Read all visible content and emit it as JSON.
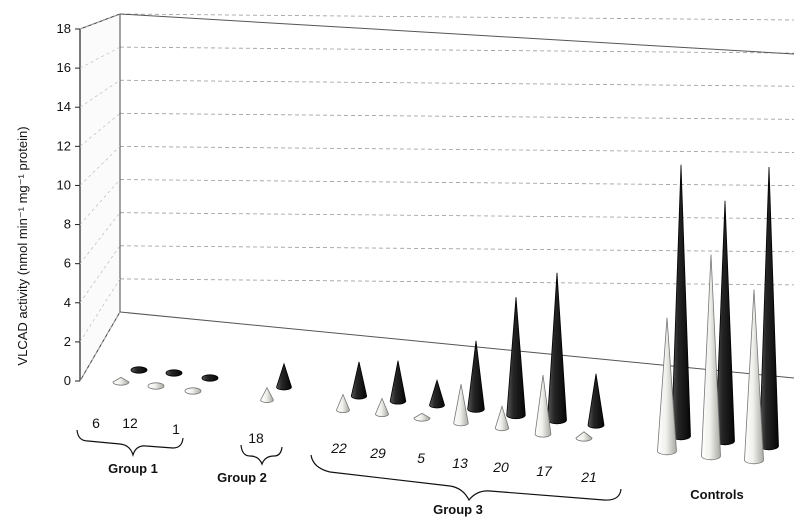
{
  "chart_data": {
    "type": "bar",
    "mark_shape": "cone",
    "ylabel": "VLCAD activity (nmol min⁻¹ mg⁻¹ protein)",
    "ylim": [
      0,
      18
    ],
    "yticks": [
      0,
      2,
      4,
      6,
      8,
      10,
      12,
      14,
      16,
      18
    ],
    "grid": "horizontal dashed",
    "legend": "none",
    "series_colors": {
      "light": "#e4e4e0",
      "dark": "#1e1e1e"
    },
    "groups": [
      {
        "name": "Group 1",
        "patients": [
          {
            "id": "6",
            "italic": false,
            "light": 0.3,
            "dark": 0.2
          },
          {
            "id": "12",
            "italic": false,
            "light": 0.2,
            "dark": 0.2
          },
          {
            "id": "1",
            "italic": false,
            "light": 0.1,
            "dark": 0.1
          }
        ]
      },
      {
        "name": "Group 2",
        "patients": [
          {
            "id": "18",
            "italic": false,
            "light": 0.8,
            "dark": 1.5
          }
        ]
      },
      {
        "name": "Group 3",
        "patients": [
          {
            "id": "22",
            "italic": true,
            "light": 1.0,
            "dark": 2.2
          },
          {
            "id": "29",
            "italic": true,
            "light": 1.0,
            "dark": 2.6
          },
          {
            "id": "5",
            "italic": true,
            "light": 0.3,
            "dark": 1.6
          },
          {
            "id": "13",
            "italic": true,
            "light": 2.5,
            "dark": 4.4
          },
          {
            "id": "20",
            "italic": true,
            "light": 1.4,
            "dark": 7.6
          },
          {
            "id": "17",
            "italic": true,
            "light": 3.8,
            "dark": 9.5
          },
          {
            "id": "21",
            "italic": true,
            "light": 0.4,
            "dark": 3.3
          }
        ]
      },
      {
        "name": "Controls",
        "patients": [
          {
            "id": "",
            "italic": false,
            "light": 8.6,
            "dark": 17.5
          },
          {
            "id": "",
            "italic": false,
            "light": 13.0,
            "dark": 15.5
          },
          {
            "id": "",
            "italic": false,
            "light": 11.0,
            "dark": 18.0
          }
        ]
      }
    ]
  }
}
